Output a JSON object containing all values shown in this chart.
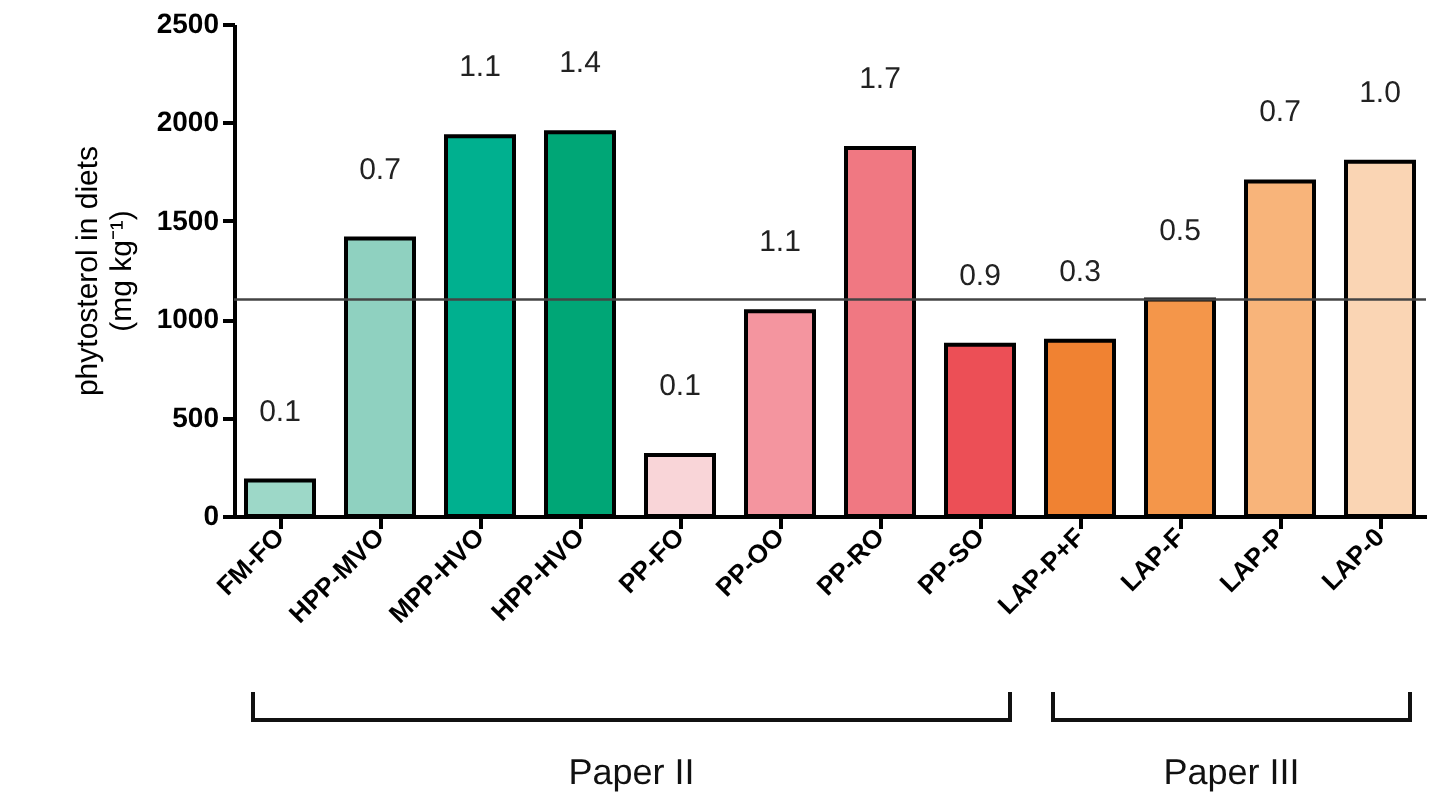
{
  "chart_data": {
    "type": "bar",
    "ylabel": "phytosterol in diets (mg kg⁻¹)",
    "categories": [
      "FM-FO",
      "HPP-MVO",
      "MPP-HVO",
      "HPP-HVO",
      "PP-FO",
      "PP-OO",
      "PP-RO",
      "PP-SO",
      "LAP-P+F",
      "LAP-F",
      "LAP-P",
      "LAP-0"
    ],
    "values": [
      180,
      1410,
      1930,
      1950,
      310,
      1040,
      1870,
      870,
      890,
      1100,
      1700,
      1800
    ],
    "colors": [
      "#9dd8c8",
      "#8fd1c0",
      "#00b08f",
      "#00a676",
      "#f9d5d8",
      "#f4959f",
      "#f07882",
      "#ec4f56",
      "#f08232",
      "#f4964a",
      "#f8b47a",
      "#fad5b4"
    ],
    "ylim": [
      0,
      2500
    ],
    "yticks": [
      0,
      500,
      1000,
      1500,
      2000,
      2500
    ],
    "ref_lines": [
      {
        "axis": "y",
        "value": 1100
      }
    ],
    "annotations": [
      {
        "text": "0.1",
        "x": "FM-FO",
        "y": 180
      },
      {
        "text": "0.7",
        "x": "HPP-MVO",
        "y": 1410
      },
      {
        "text": "1.1",
        "x": "MPP-HVO",
        "y": 1930
      },
      {
        "text": "1.4",
        "x": "HPP-HVO",
        "y": 1950
      },
      {
        "text": "0.1",
        "x": "PP-FO",
        "y": 310
      },
      {
        "text": "1.1",
        "x": "PP-OO",
        "y": 1040
      },
      {
        "text": "1.7",
        "x": "PP-RO",
        "y": 1870
      },
      {
        "text": "0.9",
        "x": "PP-SO",
        "y": 870
      },
      {
        "text": "0.3",
        "x": "LAP-P+F",
        "y": 890
      },
      {
        "text": "0.5",
        "x": "LAP-F",
        "y": 1100
      },
      {
        "text": "0.7",
        "x": "LAP-P",
        "y": 1700
      },
      {
        "text": "1.0",
        "x": "LAP-0",
        "y": 1800
      },
      "Paper II",
      "Paper III"
    ],
    "grid": false
  }
}
